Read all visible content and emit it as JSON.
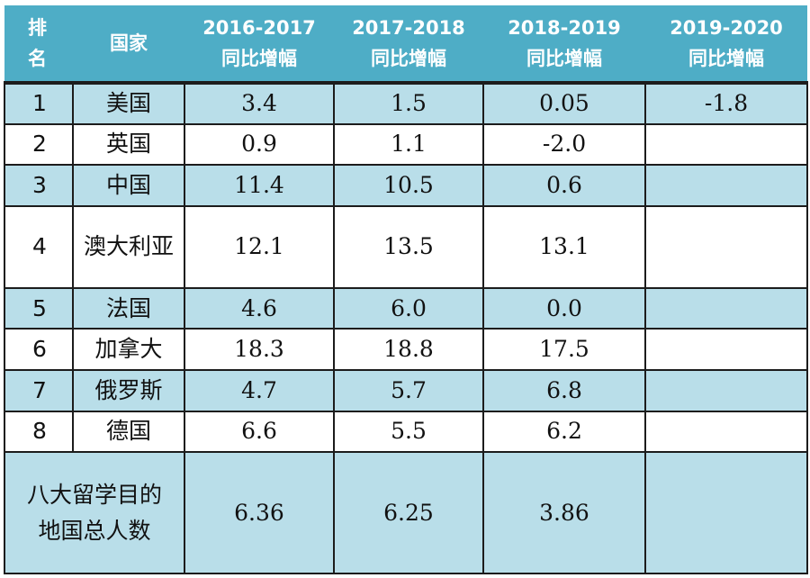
{
  "header": {
    "rank_line1": "排",
    "rank_line2": "名",
    "country": "国家",
    "col1_years": "2016-2017",
    "col2_years": "2017-2018",
    "col3_years": "2018-2019",
    "col4_years": "2019-2020",
    "growth_label": "同比增幅"
  },
  "rows": [
    {
      "rank": "1",
      "country": "美国",
      "v1": "3.4",
      "v2": "1.5",
      "v3": "0.05",
      "v4": "-1.8"
    },
    {
      "rank": "2",
      "country": "英国",
      "v1": "0.9",
      "v2": "1.1",
      "v3": "-2.0",
      "v4": ""
    },
    {
      "rank": "3",
      "country": "中国",
      "v1": "11.4",
      "v2": "10.5",
      "v3": "0.6",
      "v4": ""
    },
    {
      "rank": "4",
      "country": "澳大利亚",
      "v1": "12.1",
      "v2": "13.5",
      "v3": "13.1",
      "v4": ""
    },
    {
      "rank": "5",
      "country": "法国",
      "v1": "4.6",
      "v2": "6.0",
      "v3": "0.0",
      "v4": ""
    },
    {
      "rank": "6",
      "country": "加拿大",
      "v1": "18.3",
      "v2": "18.8",
      "v3": "17.5",
      "v4": ""
    },
    {
      "rank": "7",
      "country": "俄罗斯",
      "v1": "4.7",
      "v2": "5.7",
      "v3": "6.8",
      "v4": ""
    },
    {
      "rank": "8",
      "country": "德国",
      "v1": "6.6",
      "v2": "5.5",
      "v3": "6.2",
      "v4": ""
    }
  ],
  "total": {
    "label": "八大留学目的地国总人数",
    "v1": "6.36",
    "v2": "6.25",
    "v3": "3.86",
    "v4": ""
  },
  "colors": {
    "header_bg": "#4eadc6",
    "row_shade": "#b9dee9",
    "row_plain": "#ffffff",
    "border": "#1c1c1c"
  }
}
